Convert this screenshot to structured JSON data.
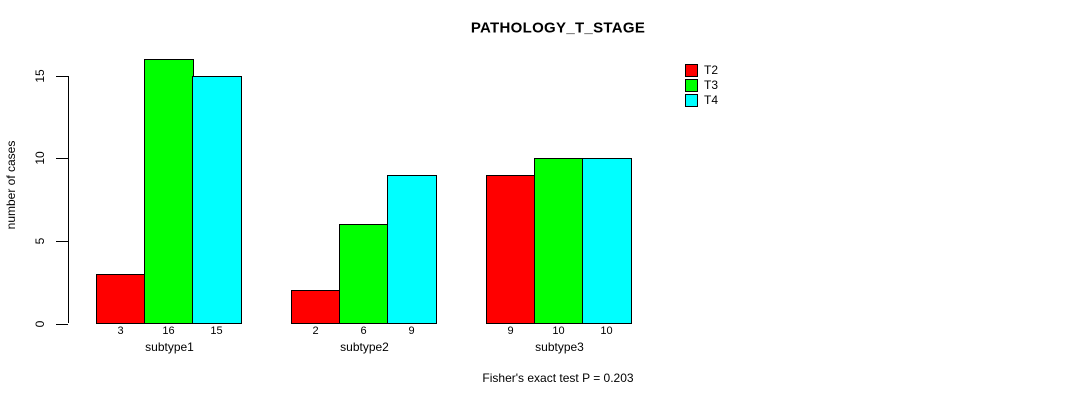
{
  "title": "PATHOLOGY_T_STAGE",
  "footnote": "Fisher's exact test P = 0.203",
  "chart_data": {
    "type": "bar",
    "title": "PATHOLOGY_T_STAGE",
    "categories": [
      "subtype1",
      "subtype2",
      "subtype3"
    ],
    "series": [
      {
        "name": "T2",
        "color": "#ff0000",
        "values": [
          3,
          2,
          9
        ]
      },
      {
        "name": "T3",
        "color": "#00ff00",
        "values": [
          16,
          6,
          10
        ]
      },
      {
        "name": "T4",
        "color": "#00ffff",
        "values": [
          15,
          9,
          10
        ]
      }
    ],
    "xlabel": "",
    "ylabel": "number of cases",
    "yticks": [
      0,
      5,
      10,
      15
    ],
    "ylim": [
      0,
      16
    ],
    "grid": false,
    "legend_position": "top-right",
    "bar_value_labels": true,
    "annotation": "Fisher's exact test P = 0.203"
  }
}
